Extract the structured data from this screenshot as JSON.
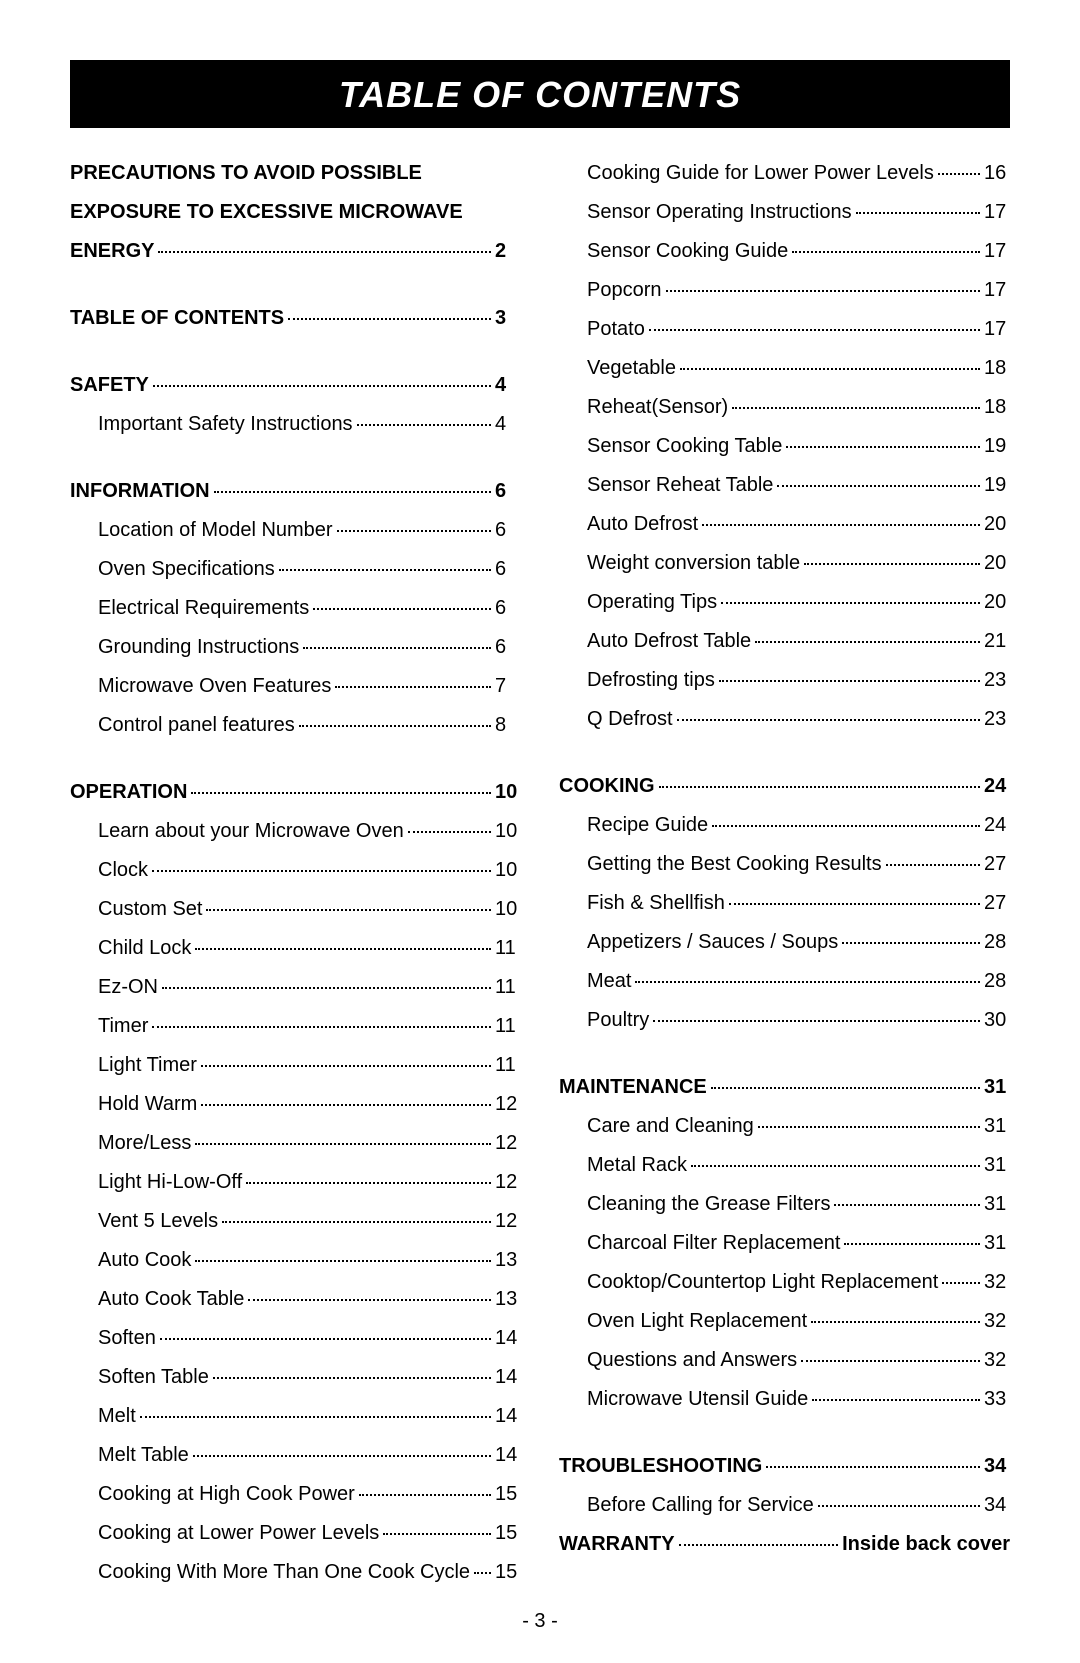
{
  "title": "Table Of Contents",
  "pageNumber": "- 3 -",
  "background_color": "#ffffff",
  "title_bar_bg": "#000000",
  "title_bar_fg": "#ffffff",
  "text_color": "#000000",
  "font_family": "Arial",
  "title_fontsize": 36,
  "body_fontsize": 20,
  "leftColumn": [
    {
      "gap": true,
      "rows": [
        {
          "label_lines": [
            "PRECAUTIONS TO AVOID POSSIBLE",
            "EXPOSURE TO EXCESSIVE MICROWAVE",
            "ENERGY"
          ],
          "page": "2",
          "bold": true
        }
      ]
    },
    {
      "gap": true,
      "rows": [
        {
          "label": "TABLE OF CONTENTS",
          "page": "3",
          "bold": true
        }
      ]
    },
    {
      "gap": true,
      "rows": [
        {
          "label": "SAFETY",
          "page": "4",
          "bold": true
        },
        {
          "label": "Important Safety Instructions",
          "page": "4",
          "sub": true
        }
      ]
    },
    {
      "gap": true,
      "rows": [
        {
          "label": "INFORMATION",
          "page": "6",
          "bold": true
        },
        {
          "label": "Location of Model Number",
          "page": "6",
          "sub": true
        },
        {
          "label": "Oven Specifications",
          "page": "6",
          "sub": true
        },
        {
          "label": "Electrical Requirements",
          "page": "6",
          "sub": true
        },
        {
          "label": "Grounding Instructions",
          "page": "6",
          "sub": true
        },
        {
          "label": "Microwave Oven Features",
          "page": "7",
          "sub": true
        },
        {
          "label": "Control panel features",
          "page": "8",
          "sub": true
        }
      ]
    },
    {
      "gap": false,
      "rows": [
        {
          "label": "OPERATION",
          "page": "10",
          "bold": true
        },
        {
          "label": "Learn about your Microwave Oven",
          "page": "10",
          "sub": true
        },
        {
          "label": "Clock",
          "page": "10",
          "sub": true
        },
        {
          "label": "Custom Set",
          "page": "10",
          "sub": true
        },
        {
          "label": "Child Lock",
          "page": "11",
          "sub": true
        },
        {
          "label": "Ez-ON",
          "page": "11",
          "sub": true
        },
        {
          "label": "Timer",
          "page": "11",
          "sub": true
        },
        {
          "label": "Light Timer",
          "page": "11",
          "sub": true
        },
        {
          "label": "Hold Warm",
          "page": "12",
          "sub": true
        },
        {
          "label": "More/Less",
          "page": "12",
          "sub": true
        },
        {
          "label": "Light Hi-Low-Off",
          "page": "12",
          "sub": true
        },
        {
          "label": "Vent 5 Levels",
          "page": "12",
          "sub": true
        },
        {
          "label": "Auto Cook",
          "page": "13",
          "sub": true
        },
        {
          "label": "Auto Cook Table",
          "page": "13",
          "sub": true
        },
        {
          "label": "Soften",
          "page": "14",
          "sub": true
        },
        {
          "label": "Soften Table",
          "page": "14",
          "sub": true
        },
        {
          "label": "Melt",
          "page": "14",
          "sub": true
        },
        {
          "label": "Melt Table",
          "page": "14",
          "sub": true
        },
        {
          "label": "Cooking at High Cook Power",
          "page": "15",
          "sub": true
        },
        {
          "label": "Cooking at Lower Power Levels",
          "page": "15",
          "sub": true
        },
        {
          "label": "Cooking With More Than One Cook Cycle",
          "page": "15",
          "sub": true
        }
      ]
    }
  ],
  "rightColumn": [
    {
      "gap": true,
      "rows": [
        {
          "label": "Cooking Guide for Lower Power Levels",
          "page": "16",
          "sub": true
        },
        {
          "label": "Sensor Operating Instructions",
          "page": "17",
          "sub": true
        },
        {
          "label": "Sensor Cooking Guide",
          "page": "17",
          "sub": true
        },
        {
          "label": "Popcorn",
          "page": "17",
          "sub": true
        },
        {
          "label": "Potato",
          "page": "17",
          "sub": true
        },
        {
          "label": "Vegetable",
          "page": "18",
          "sub": true
        },
        {
          "label": "Reheat(Sensor)",
          "page": "18",
          "sub": true
        },
        {
          "label": "Sensor Cooking Table",
          "page": "19",
          "sub": true
        },
        {
          "label": "Sensor Reheat Table",
          "page": "19",
          "sub": true
        },
        {
          "label": "Auto Defrost",
          "page": "20",
          "sub": true
        },
        {
          "label": "Weight conversion table",
          "page": "20",
          "sub": true
        },
        {
          "label": "Operating Tips",
          "page": "20",
          "sub": true
        },
        {
          "label": "Auto Defrost Table",
          "page": "21",
          "sub": true
        },
        {
          "label": "Defrosting tips",
          "page": "23",
          "sub": true
        },
        {
          "label": "Q Defrost",
          "page": "23",
          "sub": true
        }
      ]
    },
    {
      "gap": true,
      "rows": [
        {
          "label": "COOKING",
          "page": "24",
          "bold": true
        },
        {
          "label": "Recipe Guide",
          "page": "24",
          "sub": true
        },
        {
          "label": "Getting the Best Cooking Results",
          "page": "27",
          "sub": true
        },
        {
          "label": "Fish & Shellfish",
          "page": "27",
          "sub": true
        },
        {
          "label": "Appetizers / Sauces / Soups",
          "page": "28",
          "sub": true
        },
        {
          "label": "Meat",
          "page": "28",
          "sub": true
        },
        {
          "label": "Poultry",
          "page": "30",
          "sub": true
        }
      ]
    },
    {
      "gap": true,
      "rows": [
        {
          "label": "MAINTENANCE",
          "page": "31",
          "bold": true
        },
        {
          "label": "Care and Cleaning",
          "page": "31",
          "sub": true
        },
        {
          "label": "Metal Rack",
          "page": "31",
          "sub": true
        },
        {
          "label": "Cleaning the Grease Filters",
          "page": "31",
          "sub": true
        },
        {
          "label": "Charcoal Filter Replacement",
          "page": "31",
          "sub": true
        },
        {
          "label": "Cooktop/Countertop Light Replacement",
          "page": "32",
          "sub": true
        },
        {
          "label": "Oven Light Replacement",
          "page": "32",
          "sub": true
        },
        {
          "label": "Questions and Answers",
          "page": "32",
          "sub": true
        },
        {
          "label": "Microwave Utensil Guide",
          "page": "33",
          "sub": true
        }
      ]
    },
    {
      "gap": false,
      "rows": [
        {
          "label": "TROUBLESHOOTING",
          "page": "34",
          "bold": true
        },
        {
          "label": "Before Calling for Service",
          "page": "34",
          "sub": true
        },
        {
          "label": "WARRANTY",
          "page": "Inside back cover",
          "bold": true,
          "wide": true
        }
      ]
    }
  ]
}
